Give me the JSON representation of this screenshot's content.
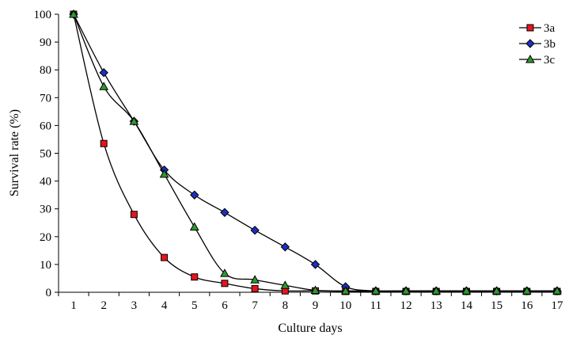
{
  "chart_data": {
    "type": "line",
    "xlabel": "Culture days",
    "ylabel": "Survival rate (%)",
    "x": [
      1,
      2,
      3,
      4,
      5,
      6,
      7,
      8,
      9,
      10,
      11,
      12,
      13,
      14,
      15,
      16,
      17
    ],
    "xlim": [
      1,
      17
    ],
    "ylim": [
      0,
      100
    ],
    "yticks": [
      0,
      10,
      20,
      30,
      40,
      50,
      60,
      70,
      80,
      90,
      100
    ],
    "grid": false,
    "legend_position": "top-right",
    "series": [
      {
        "name": "3a",
        "marker": "square",
        "marker_color": "#e8141b",
        "values": [
          100,
          53.5,
          28,
          12.5,
          5.5,
          3.2,
          1.3,
          0.5,
          0.5,
          0.3,
          0.3,
          0.3,
          0.3,
          0.3,
          0.3,
          0.3,
          0.3
        ]
      },
      {
        "name": "3b",
        "marker": "diamond",
        "marker_color": "#1c2fbf",
        "values": [
          100,
          79,
          61.5,
          44,
          35,
          28.7,
          22.3,
          16.3,
          10,
          2,
          0.5,
          0.5,
          0.5,
          0.5,
          0.5,
          0.5,
          0.5
        ]
      },
      {
        "name": "3c",
        "marker": "triangle",
        "marker_color": "#2e9a2e",
        "values": [
          100,
          74,
          61.5,
          42.5,
          23.5,
          6.8,
          4.5,
          2.5,
          0.7,
          0.5,
          0.5,
          0.5,
          0.5,
          0.5,
          0.5,
          0.5,
          0.5
        ]
      }
    ]
  }
}
